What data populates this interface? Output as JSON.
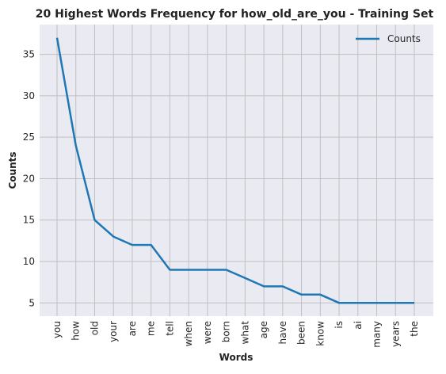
{
  "chart_data": {
    "type": "line",
    "title": "20 Highest Words Frequency for how_old_are_you - Training Set",
    "xlabel": "Words",
    "ylabel": "Counts",
    "categories": [
      "you",
      "how",
      "old",
      "your",
      "are",
      "me",
      "tell",
      "when",
      "were",
      "born",
      "what",
      "age",
      "have",
      "been",
      "know",
      "is",
      "ai",
      "many",
      "years",
      "the"
    ],
    "series": [
      {
        "name": "Counts",
        "values": [
          37,
          24,
          15,
          13,
          12,
          12,
          9,
          9,
          9,
          9,
          8,
          7,
          7,
          6,
          6,
          5,
          5,
          5,
          5,
          5
        ]
      }
    ],
    "ylim": [
      3.4,
      38.6
    ],
    "yticks": [
      5,
      10,
      15,
      20,
      25,
      30,
      35
    ],
    "grid": true,
    "legend_position": "top-right",
    "colors": {
      "line": "#1f77b4",
      "plot_background": "#eaeaf2",
      "grid": "#c0c0c0"
    }
  }
}
